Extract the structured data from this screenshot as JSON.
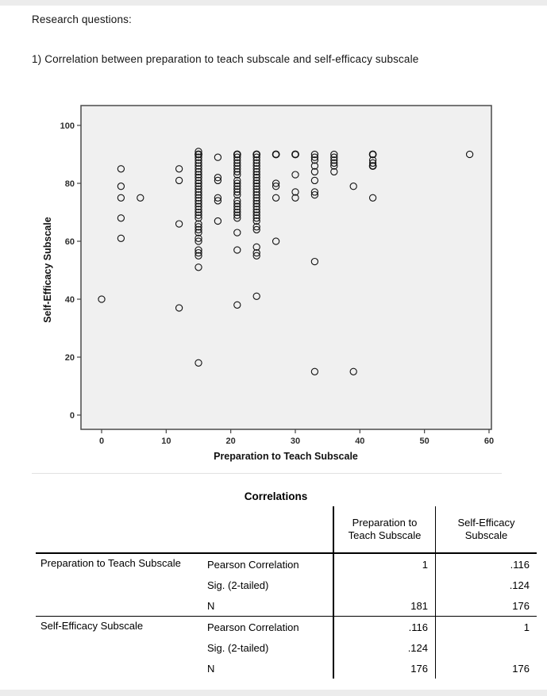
{
  "page": {
    "heading": "Research questions:",
    "question": "1) Correlation between preparation to teach subscale and self-efficacy subscale"
  },
  "chart_data": {
    "type": "scatter",
    "title": "",
    "xlabel": "Preparation to Teach Subscale",
    "ylabel": "Self-Efficacy Subscale",
    "xlim": [
      -3.2,
      63.5
    ],
    "ylim": [
      -9.5,
      107
    ],
    "xticks": [
      0,
      10,
      20,
      30,
      40,
      50,
      60
    ],
    "yticks": [
      0,
      20,
      40,
      60,
      80,
      100
    ],
    "grid": false,
    "legend": "none",
    "marker": "open-circle",
    "plot_bg": "#f0f0f0",
    "border_color": "#4a4a4a",
    "point_color": "#121212",
    "points": [
      [
        0,
        40
      ],
      [
        3,
        85
      ],
      [
        3,
        79
      ],
      [
        3,
        75
      ],
      [
        3,
        68
      ],
      [
        3,
        61
      ],
      [
        6,
        75
      ],
      [
        12,
        85
      ],
      [
        12,
        81
      ],
      [
        12,
        66
      ],
      [
        12,
        37
      ],
      [
        15,
        91
      ],
      [
        15,
        90
      ],
      [
        15,
        90
      ],
      [
        15,
        89
      ],
      [
        15,
        88
      ],
      [
        15,
        87
      ],
      [
        15,
        86
      ],
      [
        15,
        85
      ],
      [
        15,
        84
      ],
      [
        15,
        83
      ],
      [
        15,
        82
      ],
      [
        15,
        81
      ],
      [
        15,
        80
      ],
      [
        15,
        79
      ],
      [
        15,
        78
      ],
      [
        15,
        77
      ],
      [
        15,
        76
      ],
      [
        15,
        75
      ],
      [
        15,
        74
      ],
      [
        15,
        73
      ],
      [
        15,
        72
      ],
      [
        15,
        71
      ],
      [
        15,
        70
      ],
      [
        15,
        69
      ],
      [
        15,
        68
      ],
      [
        15,
        66
      ],
      [
        15,
        65
      ],
      [
        15,
        64
      ],
      [
        15,
        63
      ],
      [
        15,
        61
      ],
      [
        15,
        60
      ],
      [
        15,
        57
      ],
      [
        15,
        56
      ],
      [
        15,
        55
      ],
      [
        15,
        51
      ],
      [
        15,
        18
      ],
      [
        18,
        89
      ],
      [
        18,
        82
      ],
      [
        18,
        81
      ],
      [
        18,
        75
      ],
      [
        18,
        74
      ],
      [
        18,
        67
      ],
      [
        21,
        90
      ],
      [
        21,
        90
      ],
      [
        21,
        89
      ],
      [
        21,
        88
      ],
      [
        21,
        87
      ],
      [
        21,
        86
      ],
      [
        21,
        85
      ],
      [
        21,
        84
      ],
      [
        21,
        83
      ],
      [
        21,
        81
      ],
      [
        21,
        80
      ],
      [
        21,
        79
      ],
      [
        21,
        78
      ],
      [
        21,
        77
      ],
      [
        21,
        76
      ],
      [
        21,
        74
      ],
      [
        21,
        73
      ],
      [
        21,
        72
      ],
      [
        21,
        71
      ],
      [
        21,
        70
      ],
      [
        21,
        69
      ],
      [
        21,
        68
      ],
      [
        21,
        63
      ],
      [
        21,
        57
      ],
      [
        21,
        38
      ],
      [
        24,
        90
      ],
      [
        24,
        90
      ],
      [
        24,
        89
      ],
      [
        24,
        88
      ],
      [
        24,
        87
      ],
      [
        24,
        86
      ],
      [
        24,
        85
      ],
      [
        24,
        84
      ],
      [
        24,
        83
      ],
      [
        24,
        82
      ],
      [
        24,
        81
      ],
      [
        24,
        80
      ],
      [
        24,
        79
      ],
      [
        24,
        78
      ],
      [
        24,
        77
      ],
      [
        24,
        76
      ],
      [
        24,
        75
      ],
      [
        24,
        74
      ],
      [
        24,
        73
      ],
      [
        24,
        72
      ],
      [
        24,
        71
      ],
      [
        24,
        70
      ],
      [
        24,
        69
      ],
      [
        24,
        68
      ],
      [
        24,
        67
      ],
      [
        24,
        65
      ],
      [
        24,
        64
      ],
      [
        24,
        58
      ],
      [
        24,
        56
      ],
      [
        24,
        55
      ],
      [
        24,
        41
      ],
      [
        27,
        90
      ],
      [
        27,
        90
      ],
      [
        27,
        80
      ],
      [
        27,
        79
      ],
      [
        27,
        75
      ],
      [
        27,
        60
      ],
      [
        30,
        90
      ],
      [
        30,
        90
      ],
      [
        30,
        83
      ],
      [
        30,
        77
      ],
      [
        30,
        75
      ],
      [
        33,
        90
      ],
      [
        33,
        89
      ],
      [
        33,
        88
      ],
      [
        33,
        86
      ],
      [
        33,
        84
      ],
      [
        33,
        81
      ],
      [
        33,
        77
      ],
      [
        33,
        76
      ],
      [
        33,
        53
      ],
      [
        33,
        15
      ],
      [
        36,
        90
      ],
      [
        36,
        89
      ],
      [
        36,
        88
      ],
      [
        36,
        87
      ],
      [
        36,
        86
      ],
      [
        36,
        84
      ],
      [
        39,
        79
      ],
      [
        39,
        15
      ],
      [
        42,
        90
      ],
      [
        42,
        90
      ],
      [
        42,
        88
      ],
      [
        42,
        87
      ],
      [
        42,
        86
      ],
      [
        42,
        86
      ],
      [
        42,
        75
      ],
      [
        57,
        90
      ]
    ]
  },
  "table": {
    "title": "Correlations",
    "col_headers": [
      "Preparation to Teach Subscale",
      "Self-Efficacy Subscale"
    ],
    "groups": [
      {
        "label": "Preparation to Teach Subscale",
        "rows": [
          {
            "stat": "Pearson Correlation",
            "v1": "1",
            "v2": ".116"
          },
          {
            "stat": "Sig. (2-tailed)",
            "v1": "",
            "v2": ".124"
          },
          {
            "stat": "N",
            "v1": "181",
            "v2": "176"
          }
        ]
      },
      {
        "label": "Self-Efficacy Subscale",
        "rows": [
          {
            "stat": "Pearson Correlation",
            "v1": ".116",
            "v2": "1"
          },
          {
            "stat": "Sig. (2-tailed)",
            "v1": ".124",
            "v2": ""
          },
          {
            "stat": "N",
            "v1": "176",
            "v2": "176"
          }
        ]
      }
    ]
  }
}
